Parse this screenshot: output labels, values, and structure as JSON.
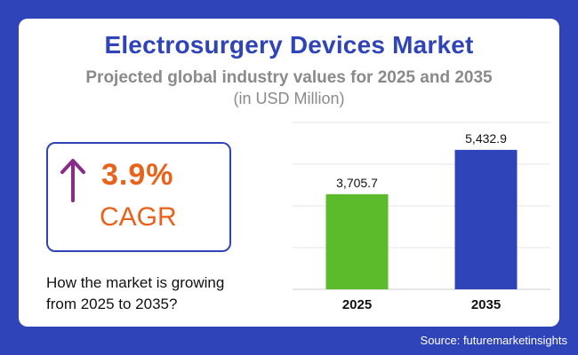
{
  "header": {
    "title": "Electrosurgery Devices Market",
    "subtitle": "Projected global industry values for 2025 and 2035",
    "unit": "(in USD Million)"
  },
  "cagr": {
    "value": "3.9%",
    "label": "CAGR",
    "icon": "arrow-up-icon",
    "color": "#e8621a",
    "arrow_color": "#8a2a8a"
  },
  "growth_text": "How the market is growing from 2025 to 2035?",
  "source": "Source: futuremarketinsights",
  "colors": {
    "background": "#2f44b8",
    "title": "#2f44b8",
    "bar_2025": "#5cbb2a",
    "bar_2035": "#2f44b8"
  },
  "chart_data": {
    "type": "bar",
    "categories": [
      "2025",
      "2035"
    ],
    "values": [
      3705.7,
      5432.9
    ],
    "data_labels": [
      "3,705.7",
      "5,432.9"
    ],
    "bar_colors": [
      "#5cbb2a",
      "#2f44b8"
    ],
    "ylim": [
      0,
      6500
    ],
    "grid": true,
    "legend": "none",
    "title": "",
    "xlabel": "",
    "ylabel": ""
  }
}
